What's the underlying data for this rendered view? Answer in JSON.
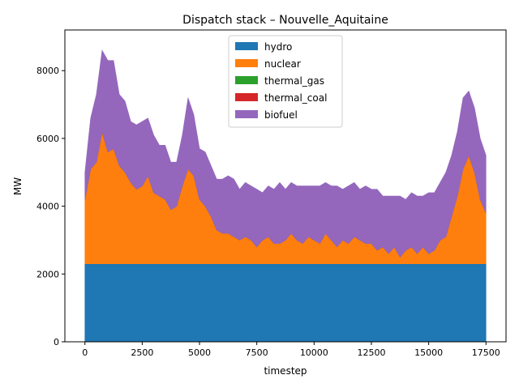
{
  "chart_data": {
    "type": "area",
    "title": "Dispatch stack – Nouvelle_Aquitaine",
    "xlabel": "timestep",
    "ylabel": "MW",
    "xlim": [
      -875,
      18375
    ],
    "ylim": [
      0,
      9200
    ],
    "x_ticks": [
      0,
      2500,
      5000,
      7500,
      10000,
      12500,
      15000,
      17500
    ],
    "x_tick_labels": [
      "0",
      "2500",
      "5000",
      "7500",
      "10000",
      "12500",
      "15000",
      "17500"
    ],
    "y_ticks": [
      0,
      2000,
      4000,
      6000,
      8000
    ],
    "y_tick_labels": [
      "0",
      "2000",
      "4000",
      "6000",
      "8000"
    ],
    "grid": false,
    "legend_position": "upper-center",
    "x": [
      0,
      250,
      500,
      750,
      1000,
      1250,
      1500,
      1750,
      2000,
      2250,
      2500,
      2750,
      3000,
      3250,
      3500,
      3750,
      4000,
      4250,
      4500,
      4750,
      5000,
      5250,
      5500,
      5750,
      6000,
      6250,
      6500,
      6750,
      7000,
      7250,
      7500,
      7750,
      8000,
      8250,
      8500,
      8750,
      9000,
      9250,
      9500,
      9750,
      10000,
      10250,
      10500,
      10750,
      11000,
      11250,
      11500,
      11750,
      12000,
      12250,
      12500,
      12750,
      13000,
      13250,
      13500,
      13750,
      14000,
      14250,
      14500,
      14750,
      15000,
      15250,
      15500,
      15750,
      16000,
      16250,
      16500,
      16750,
      17000,
      17250,
      17500
    ],
    "series": [
      {
        "name": "hydro",
        "color": "#1f77b4",
        "values": [
          2300,
          2300,
          2300,
          2300,
          2300,
          2300,
          2300,
          2300,
          2300,
          2300,
          2300,
          2300,
          2300,
          2300,
          2300,
          2300,
          2300,
          2300,
          2300,
          2300,
          2300,
          2300,
          2300,
          2300,
          2300,
          2300,
          2300,
          2300,
          2300,
          2300,
          2300,
          2300,
          2300,
          2300,
          2300,
          2300,
          2300,
          2300,
          2300,
          2300,
          2300,
          2300,
          2300,
          2300,
          2300,
          2300,
          2300,
          2300,
          2300,
          2300,
          2300,
          2300,
          2300,
          2300,
          2300,
          2300,
          2300,
          2300,
          2300,
          2300,
          2300,
          2300,
          2300,
          2300,
          2300,
          2300,
          2300,
          2300,
          2300,
          2300,
          2300
        ]
      },
      {
        "name": "nuclear",
        "color": "#ff7f0e",
        "values": [
          1900,
          2800,
          3000,
          3900,
          3300,
          3400,
          2900,
          2700,
          2400,
          2200,
          2300,
          2600,
          2100,
          2000,
          1900,
          1600,
          1700,
          2300,
          2800,
          2600,
          1900,
          1700,
          1400,
          1000,
          900,
          900,
          800,
          700,
          800,
          700,
          500,
          700,
          800,
          600,
          600,
          700,
          900,
          700,
          600,
          800,
          700,
          600,
          900,
          700,
          500,
          700,
          600,
          800,
          700,
          600,
          600,
          400,
          500,
          300,
          500,
          200,
          400,
          500,
          300,
          500,
          300,
          400,
          700,
          800,
          1400,
          2000,
          2800,
          3200,
          2700,
          1900,
          1500
        ]
      },
      {
        "name": "thermal_gas",
        "color": "#2ca02c",
        "values": [
          0,
          0,
          0,
          0,
          0,
          0,
          0,
          0,
          0,
          0,
          0,
          0,
          0,
          0,
          0,
          0,
          0,
          0,
          0,
          0,
          0,
          0,
          0,
          0,
          0,
          0,
          0,
          0,
          0,
          0,
          0,
          0,
          0,
          0,
          0,
          0,
          0,
          0,
          0,
          0,
          0,
          0,
          0,
          0,
          0,
          0,
          0,
          0,
          0,
          0,
          0,
          0,
          0,
          0,
          0,
          0,
          0,
          0,
          0,
          0,
          0,
          0,
          0,
          0,
          0,
          0,
          0,
          0,
          0,
          0,
          0
        ]
      },
      {
        "name": "thermal_coal",
        "color": "#d62728",
        "values": [
          0,
          0,
          0,
          0,
          0,
          0,
          0,
          0,
          0,
          0,
          0,
          0,
          0,
          0,
          0,
          0,
          0,
          0,
          0,
          0,
          0,
          0,
          0,
          0,
          0,
          0,
          0,
          0,
          0,
          0,
          0,
          0,
          0,
          0,
          0,
          0,
          0,
          0,
          0,
          0,
          0,
          0,
          0,
          0,
          0,
          0,
          0,
          0,
          0,
          0,
          0,
          0,
          0,
          0,
          0,
          0,
          0,
          0,
          0,
          0,
          0,
          0,
          0,
          0,
          0,
          0,
          0,
          0,
          0,
          0,
          0
        ]
      },
      {
        "name": "biofuel",
        "color": "#9467bd",
        "values": [
          800,
          1500,
          2000,
          2400,
          2700,
          2600,
          2100,
          2100,
          1800,
          1900,
          1900,
          1700,
          1700,
          1500,
          1600,
          1400,
          1300,
          1500,
          2100,
          1800,
          1500,
          1600,
          1500,
          1500,
          1600,
          1700,
          1700,
          1500,
          1600,
          1600,
          1700,
          1400,
          1500,
          1600,
          1800,
          1500,
          1500,
          1600,
          1700,
          1500,
          1600,
          1700,
          1500,
          1600,
          1800,
          1500,
          1700,
          1600,
          1500,
          1700,
          1600,
          1800,
          1500,
          1700,
          1500,
          1800,
          1500,
          1600,
          1700,
          1500,
          1800,
          1700,
          1700,
          1900,
          1800,
          1900,
          2100,
          1900,
          1900,
          1800,
          1700
        ]
      }
    ]
  }
}
